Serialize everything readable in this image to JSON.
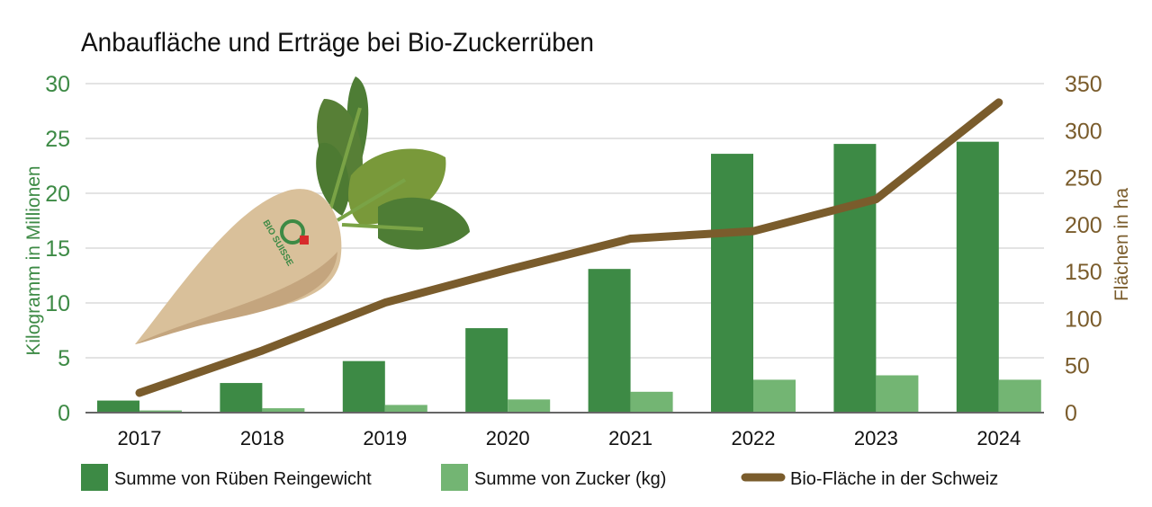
{
  "chart_data": {
    "type": "bar",
    "title": "Anbaufläche und Erträge bei Bio-Zuckerrüben",
    "categories": [
      "2017",
      "2018",
      "2019",
      "2020",
      "2021",
      "2022",
      "2023",
      "2024"
    ],
    "ylabel": "Kilogramm in Millionen",
    "ylabel_right": "Flächen in ha",
    "ylim": [
      0,
      30
    ],
    "ylim_right": [
      0,
      350
    ],
    "yticks": [
      "0",
      "5",
      "10",
      "15",
      "20",
      "25",
      "30"
    ],
    "yticks_right": [
      "0",
      "50",
      "100",
      "150",
      "200",
      "250",
      "300",
      "350"
    ],
    "grid": true,
    "legend_placement": "bottom",
    "series": [
      {
        "name": "Summe von Rüben Reingewicht",
        "type": "bar",
        "axis": "left",
        "color": "#3d8a45",
        "values": [
          1.1,
          2.7,
          4.7,
          7.7,
          13.1,
          23.6,
          24.5,
          24.7
        ]
      },
      {
        "name": "Summe von Zucker (kg)",
        "type": "bar",
        "axis": "left",
        "color": "#73b573",
        "values": [
          0.2,
          0.4,
          0.7,
          1.2,
          1.9,
          3.0,
          3.4,
          3.0
        ]
      },
      {
        "name": "Bio-Fläche in der Schweiz",
        "type": "line",
        "axis": "right",
        "color": "#7a5c2c",
        "values": [
          21,
          66,
          117,
          152,
          185,
          193,
          227,
          330
        ]
      }
    ]
  },
  "illustration": {
    "name": "sugar-beet",
    "logo_text": "BIO SUISSE"
  },
  "colors": {
    "left_axis": "#3d8a45",
    "right_axis": "#7a5c2c",
    "grid": "#e3e3e3"
  }
}
